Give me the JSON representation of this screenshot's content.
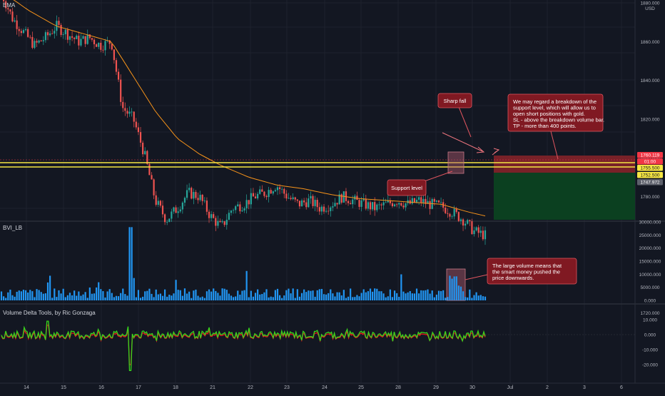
{
  "panes": {
    "price": {
      "label": "EMA"
    },
    "volume": {
      "label": "BVI_LB"
    },
    "delta": {
      "label": "Volume Delta Tools, by Ric Gonzaga"
    }
  },
  "price_axis": {
    "currency": "USD",
    "ticks": [
      "1880.000",
      "1860.000",
      "1840.000",
      "1820.000",
      "1800.000",
      "1780.000",
      "1720.000"
    ],
    "tags": [
      {
        "text": "1760.119",
        "bg": "#f23645",
        "fg": "#ffffff"
      },
      {
        "text": "01:00",
        "bg": "#f23645",
        "fg": "#ffffff"
      },
      {
        "text": "1755.500",
        "bg": "#f5e642",
        "fg": "#131722"
      },
      {
        "text": "1752.500",
        "bg": "#f5e642",
        "fg": "#131722"
      },
      {
        "text": "1747.972",
        "bg": "#5d606b",
        "fg": "#ffffff"
      }
    ]
  },
  "volume_axis": {
    "ticks": [
      "30000.000",
      "25000.000",
      "20000.000",
      "15000.000",
      "10000.000",
      "5000.000",
      "0.000"
    ]
  },
  "delta_axis": {
    "ticks": [
      "10.000",
      "0.000",
      "-10.000",
      "-20.000"
    ]
  },
  "time_axis": {
    "ticks": [
      "14",
      "15",
      "16",
      "17",
      "18",
      "21",
      "22",
      "23",
      "24",
      "25",
      "28",
      "29",
      "30",
      "Jul",
      "2",
      "3",
      "6"
    ]
  },
  "annotations": {
    "sharp_fall": "Sharp fall",
    "support_level": "Support level",
    "breakdown": [
      "We may regard a breakdown of the",
      "support level, which will allow us to",
      "open short positions with gold.",
      "SL - above the breakdown volume bar.",
      "TP - more than 400 points."
    ],
    "large_volume": [
      "The large volume means that",
      "the smart money pushed the",
      "price downwards."
    ]
  },
  "colors": {
    "background": "#131722",
    "grid": "#1e222d",
    "up_candle": "#26a69a",
    "down_candle": "#ef5350",
    "ema": "#f7931a",
    "support_lines": "#f5e642",
    "volume_bar": "#2196f3",
    "note_fill": "#801922",
    "note_stroke": "#e0555f",
    "stop_zone": "#8b2329",
    "target_zone": "#0b4221",
    "delta_green": "#37d61c",
    "delta_red": "#e8141c"
  },
  "chart_data": [
    {
      "type": "candlestick",
      "title": "EMA",
      "currency": "USD",
      "ylim": [
        1710,
        1885
      ],
      "x_dates": [
        "14",
        "15",
        "16",
        "17",
        "18",
        "21",
        "22",
        "23",
        "24",
        "25",
        "28",
        "29",
        "30"
      ],
      "approx_close_path": [
        [
          0,
          1885
        ],
        [
          2,
          1872
        ],
        [
          4,
          1865
        ],
        [
          6,
          1858
        ],
        [
          8,
          1862
        ],
        [
          10,
          1868
        ],
        [
          12,
          1864
        ],
        [
          14,
          1860
        ],
        [
          16,
          1862
        ],
        [
          18,
          1858
        ],
        [
          20,
          1860
        ],
        [
          22,
          1826
        ],
        [
          24,
          1820
        ],
        [
          26,
          1802
        ],
        [
          28,
          1778
        ],
        [
          30,
          1768
        ],
        [
          32,
          1774
        ],
        [
          34,
          1782
        ],
        [
          36,
          1780
        ],
        [
          38,
          1770
        ],
        [
          40,
          1764
        ],
        [
          42,
          1774
        ],
        [
          44,
          1776
        ],
        [
          46,
          1780
        ],
        [
          48,
          1782
        ],
        [
          50,
          1786
        ],
        [
          52,
          1780
        ],
        [
          54,
          1776
        ],
        [
          56,
          1778
        ],
        [
          58,
          1774
        ],
        [
          60,
          1776
        ],
        [
          62,
          1780
        ],
        [
          64,
          1778
        ],
        [
          66,
          1776
        ],
        [
          68,
          1774
        ],
        [
          70,
          1776
        ],
        [
          72,
          1778
        ],
        [
          74,
          1776
        ],
        [
          76,
          1778
        ],
        [
          78,
          1776
        ],
        [
          80,
          1775
        ],
        [
          82,
          1772
        ],
        [
          84,
          1768
        ],
        [
          86,
          1762
        ],
        [
          88,
          1760
        ]
      ],
      "ema_path": [
        [
          0,
          1886
        ],
        [
          5,
          1876
        ],
        [
          10,
          1868
        ],
        [
          15,
          1864
        ],
        [
          20,
          1860
        ],
        [
          24,
          1842
        ],
        [
          28,
          1824
        ],
        [
          32,
          1810
        ],
        [
          36,
          1802
        ],
        [
          40,
          1796
        ],
        [
          45,
          1790
        ],
        [
          50,
          1786
        ],
        [
          55,
          1784
        ],
        [
          60,
          1781
        ],
        [
          65,
          1779
        ],
        [
          70,
          1778
        ],
        [
          75,
          1777
        ],
        [
          80,
          1776
        ],
        [
          85,
          1772
        ],
        [
          88,
          1770
        ]
      ],
      "support_levels": [
        1755.5,
        1752.5
      ],
      "last_price": 1760.119,
      "stop_loss_zone": [
        1754,
        1763
      ],
      "take_profit_zone": [
        1710,
        1748
      ]
    },
    {
      "type": "bar",
      "title": "BVI_LB",
      "ylim": [
        0,
        30000
      ],
      "notable_values": {
        "spike_17": 28000,
        "spike_29_30": 9500,
        "typical": 2500
      }
    },
    {
      "type": "line",
      "title": "Volume Delta Tools, by Ric Gonzaga",
      "ylim": [
        -25,
        15
      ],
      "notable_values": {
        "min_17": -24,
        "max_14": 9
      }
    }
  ]
}
